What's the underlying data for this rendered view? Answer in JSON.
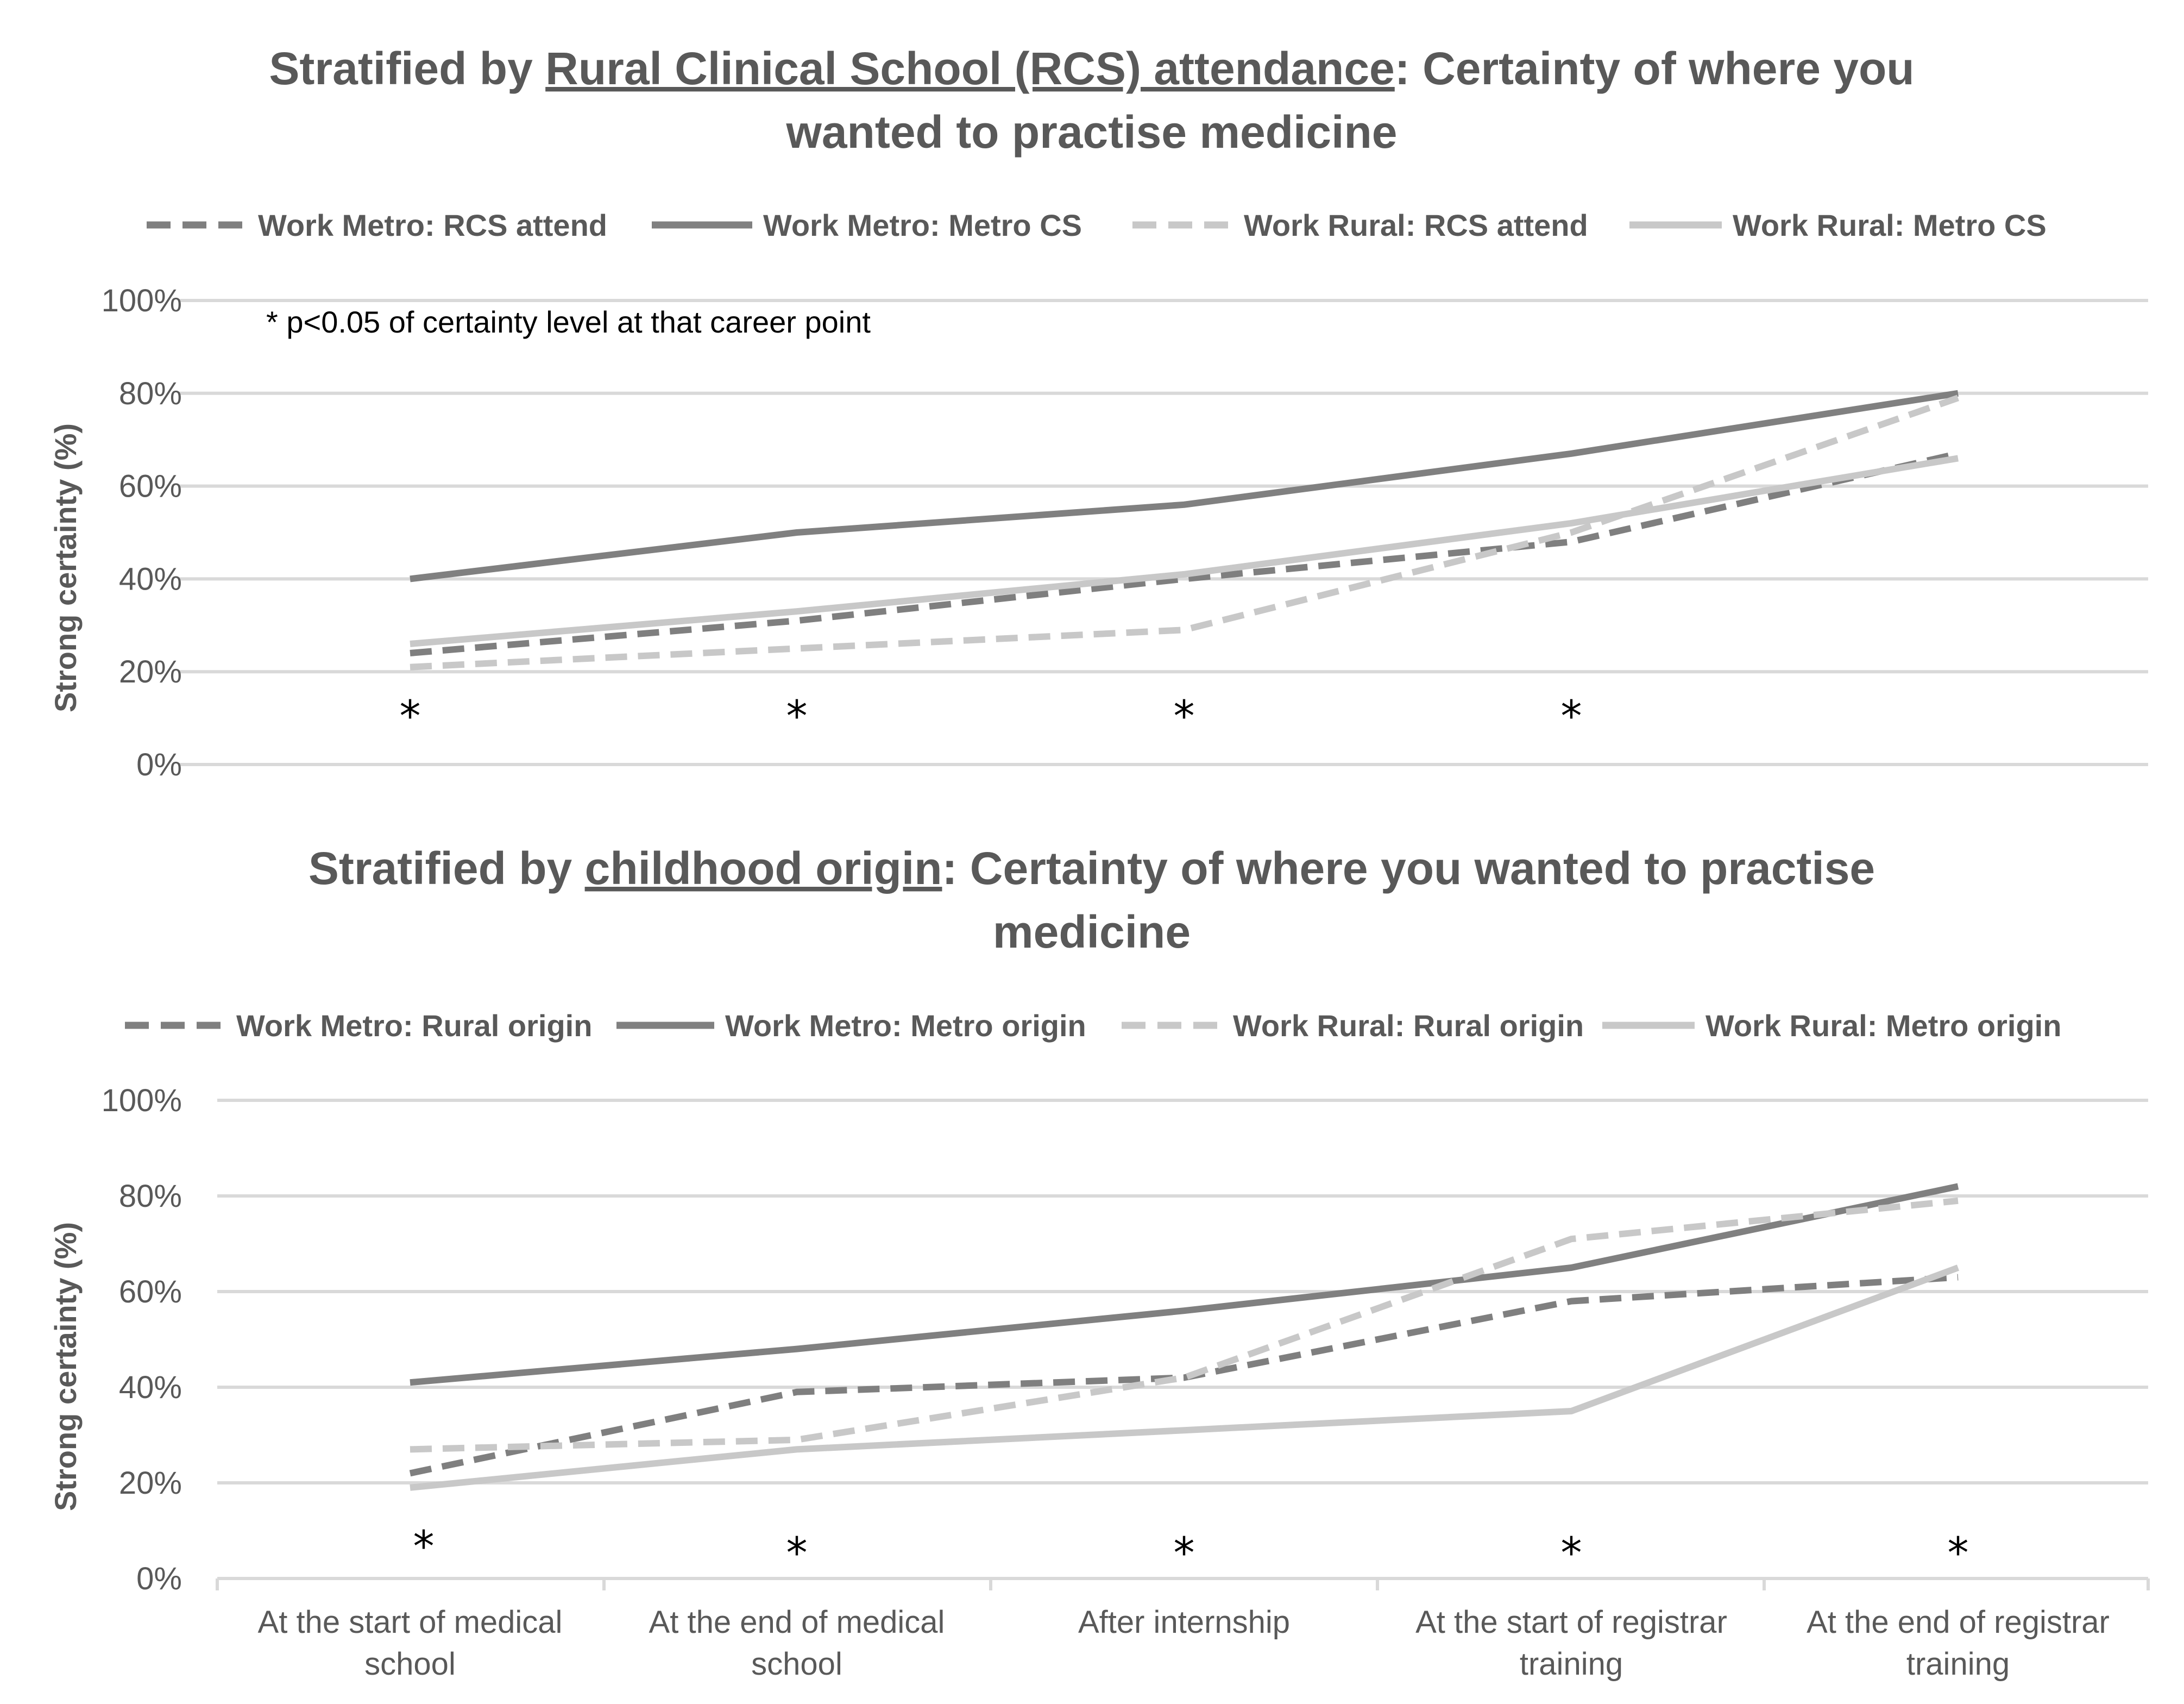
{
  "chart_data": [
    {
      "type": "line",
      "title_pre": "Stratified by ",
      "title_underlined": "Rural Clinical School (RCS) attendance",
      "title_post_line1": ": Certainty of where you",
      "title_line2": "wanted to practise medicine",
      "ylabel": "Strong certainty (%)",
      "xlabel": "",
      "ylim": [
        0,
        100
      ],
      "yticks": [
        "0%",
        "20%",
        "40%",
        "60%",
        "80%",
        "100%"
      ],
      "note": "* p<0.05 of certainty level at that career point",
      "categories": [
        "At the start of medical school",
        "At the end of medical school",
        "After internship",
        "At the start of registrar training",
        "At the end of registrar training"
      ],
      "significance": [
        "*",
        "*",
        "*",
        "*",
        ""
      ],
      "series": [
        {
          "name": "Work Metro: RCS attend",
          "values": [
            24,
            31,
            40,
            48,
            67
          ],
          "color": "#7f7f7f",
          "dash": true
        },
        {
          "name": "Work Metro: Metro CS",
          "values": [
            40,
            50,
            56,
            67,
            80
          ],
          "color": "#808080",
          "dash": false
        },
        {
          "name": "Work Rural: RCS attend",
          "values": [
            21,
            25,
            29,
            50,
            79
          ],
          "color": "#c8c8c8",
          "dash": true
        },
        {
          "name": "Work Rural: Metro CS",
          "values": [
            26,
            33,
            41,
            52,
            66
          ],
          "color": "#c8c8c8",
          "dash": false
        }
      ]
    },
    {
      "type": "line",
      "title_pre": "Stratified by ",
      "title_underlined": "childhood origin",
      "title_post_line1": ": Certainty of where you wanted to practise",
      "title_line2": "medicine",
      "ylabel": "Strong certainty (%)",
      "xlabel": "",
      "ylim": [
        0,
        100
      ],
      "yticks": [
        "0%",
        "20%",
        "40%",
        "60%",
        "80%",
        "100%"
      ],
      "categories_line1": [
        "At the start of medical",
        "At the end of medical",
        "After internship",
        "At the start of registrar",
        "At the end of registrar"
      ],
      "categories_line2": [
        "school",
        "school",
        "",
        "training",
        "training"
      ],
      "significance": [
        "*",
        "*",
        "*",
        "*",
        "*"
      ],
      "series": [
        {
          "name": "Work Metro: Rural origin",
          "values": [
            22,
            39,
            42,
            58,
            63
          ],
          "color": "#7f7f7f",
          "dash": true
        },
        {
          "name": "Work Metro: Metro origin",
          "values": [
            41,
            48,
            56,
            65,
            82
          ],
          "color": "#808080",
          "dash": false
        },
        {
          "name": "Work Rural: Rural origin",
          "values": [
            27,
            29,
            42,
            71,
            79
          ],
          "color": "#c8c8c8",
          "dash": true
        },
        {
          "name": "Work Rural: Metro origin",
          "values": [
            19,
            27,
            31,
            35,
            65
          ],
          "color": "#c8c8c8",
          "dash": false
        }
      ]
    }
  ]
}
